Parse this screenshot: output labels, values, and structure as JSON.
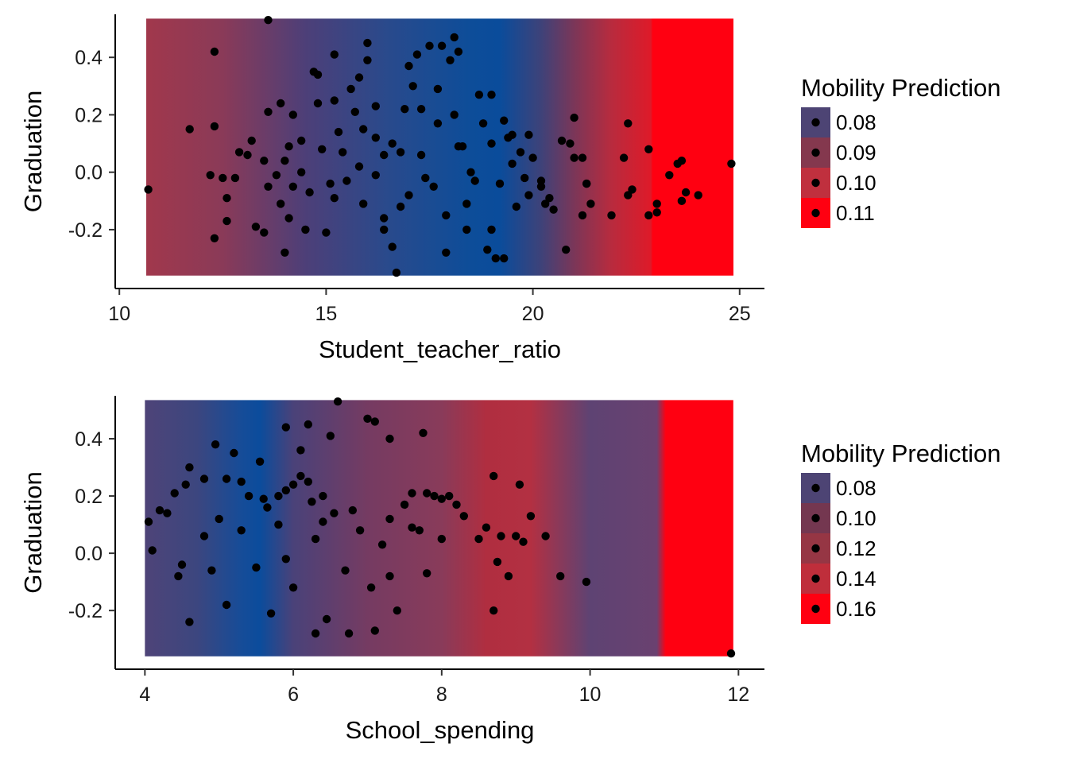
{
  "chart_data": [
    {
      "type": "scatter",
      "xlabel": "Student_teacher_ratio",
      "ylabel": "Graduation",
      "xlim": [
        9.9,
        25.6
      ],
      "ylim": [
        -0.405,
        0.55
      ],
      "x_ticks": [
        10,
        15,
        20,
        25
      ],
      "x_tick_labels": [
        "10",
        "15",
        "20",
        "25"
      ],
      "y_ticks": [
        -0.2,
        0.0,
        0.2,
        0.4
      ],
      "y_tick_labels": [
        "-0.2",
        "0.0",
        "0.2",
        "0.4"
      ],
      "grid": false,
      "point_color": "#000000",
      "background": {
        "type": "gradient-band",
        "x_range": [
          10.65,
          24.85
        ],
        "y_range": [
          -0.36,
          0.535
        ],
        "stops": [
          {
            "x": 10.65,
            "color": "#a1384c"
          },
          {
            "x": 12.5,
            "color": "#8a3a58"
          },
          {
            "x": 14.5,
            "color": "#4d3f78"
          },
          {
            "x": 16.5,
            "color": "#294a8c"
          },
          {
            "x": 18.5,
            "color": "#0d4d99"
          },
          {
            "x": 19.2,
            "color": "#0a4c9b"
          },
          {
            "x": 20.2,
            "color": "#3e4279"
          },
          {
            "x": 21.0,
            "color": "#7b3658"
          },
          {
            "x": 21.9,
            "color": "#b82b3e"
          },
          {
            "x": 22.85,
            "color": "#de1a29"
          },
          {
            "x": 22.9,
            "color": "#ff0011"
          },
          {
            "x": 24.85,
            "color": "#ff0011"
          }
        ]
      },
      "legend": {
        "title": "Mobility Prediction",
        "position": "right",
        "entries": [
          {
            "label": "0.08",
            "color": "#4d4474"
          },
          {
            "label": "0.09",
            "color": "#84384e"
          },
          {
            "label": "0.10",
            "color": "#c0303e"
          },
          {
            "label": "0.11",
            "color": "#ff0011"
          }
        ]
      },
      "points": [
        [
          13.6,
          0.53
        ],
        [
          12.3,
          0.42
        ],
        [
          10.7,
          -0.06
        ],
        [
          11.7,
          0.15
        ],
        [
          12.2,
          -0.01
        ],
        [
          12.3,
          0.16
        ],
        [
          12.3,
          -0.23
        ],
        [
          12.6,
          -0.09
        ],
        [
          12.6,
          -0.17
        ],
        [
          12.5,
          -0.02
        ],
        [
          12.8,
          -0.02
        ],
        [
          12.9,
          0.07
        ],
        [
          13.1,
          0.06
        ],
        [
          13.2,
          0.11
        ],
        [
          13.3,
          -0.19
        ],
        [
          13.5,
          -0.21
        ],
        [
          13.6,
          -0.05
        ],
        [
          13.5,
          0.04
        ],
        [
          13.9,
          -0.11
        ],
        [
          13.6,
          0.21
        ],
        [
          13.9,
          0.24
        ],
        [
          14.0,
          -0.28
        ],
        [
          13.8,
          -0.01
        ],
        [
          14.1,
          -0.16
        ],
        [
          14.2,
          0.2
        ],
        [
          14.1,
          0.09
        ],
        [
          14.4,
          0.11
        ],
        [
          14.5,
          -0.2
        ],
        [
          14.7,
          0.35
        ],
        [
          14.8,
          0.34
        ],
        [
          14.8,
          0.24
        ],
        [
          15.0,
          -0.21
        ],
        [
          15.2,
          -0.09
        ],
        [
          15.2,
          0.25
        ],
        [
          15.2,
          0.41
        ],
        [
          15.5,
          -0.03
        ],
        [
          15.6,
          0.29
        ],
        [
          15.8,
          0.33
        ],
        [
          15.9,
          -0.11
        ],
        [
          15.9,
          0.15
        ],
        [
          16.0,
          0.39
        ],
        [
          16.0,
          0.45
        ],
        [
          16.2,
          -0.01
        ],
        [
          16.2,
          0.23
        ],
        [
          16.4,
          -0.16
        ],
        [
          16.4,
          0.06
        ],
        [
          16.6,
          -0.26
        ],
        [
          16.7,
          -0.35
        ],
        [
          16.9,
          0.22
        ],
        [
          16.8,
          0.07
        ],
        [
          17.0,
          -0.08
        ],
        [
          17.0,
          0.37
        ],
        [
          17.2,
          0.41
        ],
        [
          17.3,
          0.22
        ],
        [
          17.4,
          -0.02
        ],
        [
          17.5,
          0.44
        ],
        [
          17.7,
          0.29
        ],
        [
          17.7,
          0.17
        ],
        [
          17.8,
          0.44
        ],
        [
          17.9,
          -0.28
        ],
        [
          18.0,
          0.39
        ],
        [
          18.1,
          0.47
        ],
        [
          18.2,
          0.42
        ],
        [
          18.3,
          0.09
        ],
        [
          18.4,
          -0.11
        ],
        [
          18.6,
          -0.03
        ],
        [
          18.7,
          0.27
        ],
        [
          18.9,
          -0.27
        ],
        [
          19.0,
          0.27
        ],
        [
          19.1,
          -0.3
        ],
        [
          19.3,
          0.18
        ],
        [
          19.2,
          -0.04
        ],
        [
          19.3,
          -0.3
        ],
        [
          19.5,
          0.13
        ],
        [
          19.6,
          -0.12
        ],
        [
          19.8,
          -0.02
        ],
        [
          19.9,
          0.13
        ],
        [
          20.2,
          -0.03
        ],
        [
          20.4,
          -0.09
        ],
        [
          20.5,
          -0.13
        ],
        [
          20.7,
          0.11
        ],
        [
          20.8,
          -0.27
        ],
        [
          20.9,
          0.1
        ],
        [
          21.0,
          0.05
        ],
        [
          21.0,
          0.19
        ],
        [
          21.2,
          0.05
        ],
        [
          21.3,
          -0.04
        ],
        [
          21.4,
          -0.11
        ],
        [
          21.9,
          -0.15
        ],
        [
          22.2,
          0.05
        ],
        [
          22.3,
          0.17
        ],
        [
          22.3,
          -0.08
        ],
        [
          22.4,
          -0.06
        ],
        [
          22.8,
          0.08
        ],
        [
          23.0,
          -0.14
        ],
        [
          23.0,
          -0.11
        ],
        [
          23.3,
          -0.01
        ],
        [
          23.5,
          0.03
        ],
        [
          23.6,
          0.04
        ],
        [
          23.6,
          -0.1
        ],
        [
          23.7,
          -0.07
        ],
        [
          24.0,
          -0.08
        ],
        [
          24.8,
          0.03
        ],
        [
          22.8,
          -0.15
        ],
        [
          21.2,
          -0.15
        ],
        [
          20.3,
          -0.11
        ],
        [
          20.2,
          -0.05
        ],
        [
          21.3,
          -0.04
        ],
        [
          19.5,
          0.03
        ],
        [
          19.7,
          0.07
        ],
        [
          19.4,
          0.12
        ],
        [
          19.0,
          0.1
        ],
        [
          18.8,
          0.17
        ],
        [
          18.2,
          0.09
        ],
        [
          18.5,
          0.0
        ],
        [
          17.6,
          -0.05
        ],
        [
          17.3,
          0.06
        ],
        [
          16.6,
          0.1
        ],
        [
          16.2,
          0.12
        ],
        [
          15.8,
          0.02
        ],
        [
          15.4,
          0.07
        ],
        [
          15.1,
          -0.04
        ],
        [
          14.9,
          0.08
        ],
        [
          14.6,
          -0.07
        ],
        [
          14.4,
          0.0
        ],
        [
          14.2,
          -0.05
        ],
        [
          14.0,
          0.04
        ],
        [
          15.3,
          0.14
        ],
        [
          16.8,
          -0.12
        ],
        [
          17.9,
          -0.15
        ],
        [
          18.1,
          0.2
        ],
        [
          16.4,
          -0.2
        ],
        [
          17.1,
          0.3
        ],
        [
          15.7,
          0.21
        ],
        [
          19.0,
          -0.2
        ],
        [
          18.4,
          -0.2
        ],
        [
          20.0,
          0.05
        ],
        [
          19.9,
          -0.08
        ]
      ]
    },
    {
      "type": "scatter",
      "xlabel": "School_spending",
      "ylabel": "Graduation",
      "xlim": [
        3.6,
        12.35
      ],
      "ylim": [
        -0.405,
        0.55
      ],
      "x_ticks": [
        4,
        6,
        8,
        10,
        12
      ],
      "x_tick_labels": [
        "4",
        "6",
        "8",
        "10",
        "12"
      ],
      "y_ticks": [
        -0.2,
        0.0,
        0.2,
        0.4
      ],
      "y_tick_labels": [
        "-0.2",
        "0.0",
        "0.2",
        "0.4"
      ],
      "grid": false,
      "point_color": "#000000",
      "background": {
        "type": "gradient-band",
        "x_range": [
          4.0,
          11.93
        ],
        "y_range": [
          -0.36,
          0.535
        ],
        "stops": [
          {
            "x": 4.0,
            "color": "#4e4478"
          },
          {
            "x": 4.7,
            "color": "#3c467f"
          },
          {
            "x": 5.3,
            "color": "#164c98"
          },
          {
            "x": 5.55,
            "color": "#0b4c9c"
          },
          {
            "x": 6.0,
            "color": "#4a4279"
          },
          {
            "x": 7.0,
            "color": "#753b62"
          },
          {
            "x": 8.0,
            "color": "#893b5a"
          },
          {
            "x": 8.6,
            "color": "#b02e40"
          },
          {
            "x": 9.2,
            "color": "#b33042"
          },
          {
            "x": 10.0,
            "color": "#5e4373"
          },
          {
            "x": 10.9,
            "color": "#6a4170"
          },
          {
            "x": 11.02,
            "color": "#ff0011"
          },
          {
            "x": 11.93,
            "color": "#ff0011"
          }
        ]
      },
      "legend": {
        "title": "Mobility Prediction",
        "position": "right",
        "entries": [
          {
            "label": "0.08",
            "color": "#4d4474"
          },
          {
            "label": "0.10",
            "color": "#743750"
          },
          {
            "label": "0.12",
            "color": "#963644"
          },
          {
            "label": "0.14",
            "color": "#bf2e3b"
          },
          {
            "label": "0.16",
            "color": "#ff0011"
          }
        ]
      },
      "points": [
        [
          4.05,
          0.11
        ],
        [
          4.1,
          0.01
        ],
        [
          4.2,
          0.15
        ],
        [
          4.3,
          0.14
        ],
        [
          4.4,
          0.21
        ],
        [
          4.45,
          -0.08
        ],
        [
          4.55,
          0.24
        ],
        [
          4.6,
          0.3
        ],
        [
          4.6,
          -0.24
        ],
        [
          4.8,
          0.26
        ],
        [
          4.9,
          -0.06
        ],
        [
          4.95,
          0.38
        ],
        [
          5.1,
          0.26
        ],
        [
          5.2,
          0.35
        ],
        [
          5.3,
          0.25
        ],
        [
          5.4,
          0.2
        ],
        [
          5.55,
          0.32
        ],
        [
          5.6,
          0.19
        ],
        [
          5.65,
          0.16
        ],
        [
          5.7,
          -0.21
        ],
        [
          5.8,
          0.2
        ],
        [
          5.9,
          0.22
        ],
        [
          6.0,
          0.24
        ],
        [
          6.1,
          0.27
        ],
        [
          6.2,
          0.25
        ],
        [
          6.25,
          0.18
        ],
        [
          6.3,
          -0.28
        ],
        [
          6.4,
          0.2
        ],
        [
          6.45,
          -0.23
        ],
        [
          6.5,
          0.41
        ],
        [
          6.6,
          0.53
        ],
        [
          6.55,
          0.14
        ],
        [
          6.75,
          -0.28
        ],
        [
          6.8,
          0.15
        ],
        [
          6.9,
          0.08
        ],
        [
          7.0,
          0.47
        ],
        [
          7.05,
          -0.12
        ],
        [
          7.1,
          -0.27
        ],
        [
          7.3,
          0.12
        ],
        [
          7.4,
          -0.2
        ],
        [
          7.5,
          0.17
        ],
        [
          7.6,
          0.21
        ],
        [
          7.7,
          0.08
        ],
        [
          7.75,
          0.42
        ],
        [
          7.8,
          0.21
        ],
        [
          7.9,
          0.2
        ],
        [
          8.0,
          0.19
        ],
        [
          8.1,
          0.2
        ],
        [
          8.2,
          0.17
        ],
        [
          8.3,
          0.13
        ],
        [
          8.5,
          0.05
        ],
        [
          8.6,
          0.09
        ],
        [
          8.7,
          0.27
        ],
        [
          8.75,
          -0.03
        ],
        [
          8.8,
          0.06
        ],
        [
          8.9,
          -0.08
        ],
        [
          9.0,
          0.06
        ],
        [
          9.05,
          0.24
        ],
        [
          9.1,
          0.04
        ],
        [
          9.2,
          0.13
        ],
        [
          9.4,
          0.06
        ],
        [
          9.6,
          -0.08
        ],
        [
          9.95,
          -0.1
        ],
        [
          11.9,
          -0.35
        ],
        [
          6.2,
          0.45
        ],
        [
          5.0,
          0.12
        ],
        [
          5.3,
          0.08
        ],
        [
          5.5,
          -0.05
        ],
        [
          5.8,
          0.1
        ],
        [
          6.0,
          -0.12
        ],
        [
          6.3,
          0.05
        ],
        [
          6.7,
          -0.06
        ],
        [
          7.2,
          0.03
        ],
        [
          5.1,
          -0.18
        ],
        [
          4.5,
          -0.04
        ],
        [
          4.8,
          0.06
        ],
        [
          5.9,
          -0.02
        ],
        [
          6.4,
          0.11
        ],
        [
          7.3,
          -0.08
        ],
        [
          7.6,
          0.09
        ],
        [
          8.7,
          -0.2
        ],
        [
          8.0,
          0.05
        ],
        [
          7.8,
          -0.07
        ],
        [
          6.1,
          0.36
        ],
        [
          5.9,
          0.44
        ],
        [
          7.3,
          0.4
        ],
        [
          7.1,
          0.46
        ]
      ]
    }
  ]
}
